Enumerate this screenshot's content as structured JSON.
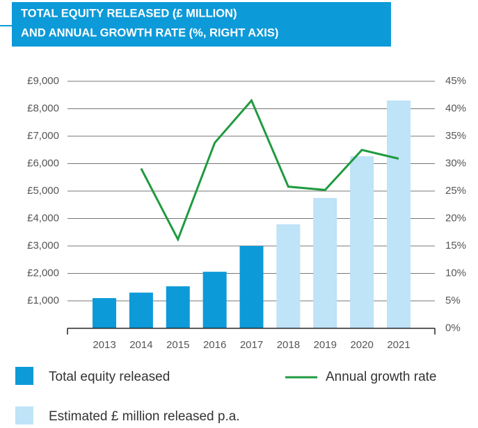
{
  "chart_data": {
    "type": "bar",
    "title_lines": [
      "TOTAL EQUITY RELEASED (£ MILLION)",
      "AND ANNUAL GROWTH RATE (%, RIGHT AXIS)"
    ],
    "categories": [
      "2013",
      "2014",
      "2015",
      "2016",
      "2017",
      "2018",
      "2019",
      "2020",
      "2021"
    ],
    "series": [
      {
        "name": "Total equity released",
        "type": "bar",
        "color": "#0d9ad8",
        "values": [
          1100,
          1300,
          1530,
          2060,
          3000,
          null,
          null,
          null,
          null
        ]
      },
      {
        "name": "Estimated £ million released p.a.",
        "type": "bar",
        "color": "#bfe3f7",
        "values": [
          null,
          null,
          null,
          null,
          null,
          3790,
          4750,
          6270,
          8300
        ]
      },
      {
        "name": "Annual growth rate",
        "type": "line",
        "axis": "y2",
        "color": "#1f9a3f",
        "values": [
          null,
          29.1,
          16.2,
          33.8,
          41.5,
          25.8,
          25.2,
          32.5,
          30.9
        ]
      }
    ],
    "ylim": [
      0,
      9000
    ],
    "yticks": [
      {
        "value": 1000,
        "label": "£1,000"
      },
      {
        "value": 2000,
        "label": "£2,000"
      },
      {
        "value": 3000,
        "label": "£3,000"
      },
      {
        "value": 4000,
        "label": "£4,000"
      },
      {
        "value": 5000,
        "label": "£5,000"
      },
      {
        "value": 6000,
        "label": "£6,000"
      },
      {
        "value": 7000,
        "label": "£7,000"
      },
      {
        "value": 8000,
        "label": "£8,000"
      },
      {
        "value": 9000,
        "label": "£9,000"
      }
    ],
    "y2lim": [
      0,
      45
    ],
    "y2ticks": [
      {
        "value": 0,
        "label": "0%"
      },
      {
        "value": 5,
        "label": "5%"
      },
      {
        "value": 10,
        "label": "10%"
      },
      {
        "value": 15,
        "label": "15%"
      },
      {
        "value": 20,
        "label": "20%"
      },
      {
        "value": 25,
        "label": "25%"
      },
      {
        "value": 30,
        "label": "30%"
      },
      {
        "value": 35,
        "label": "35%"
      },
      {
        "value": 40,
        "label": "40%"
      },
      {
        "value": 45,
        "label": "45%"
      }
    ],
    "grid": true
  }
}
